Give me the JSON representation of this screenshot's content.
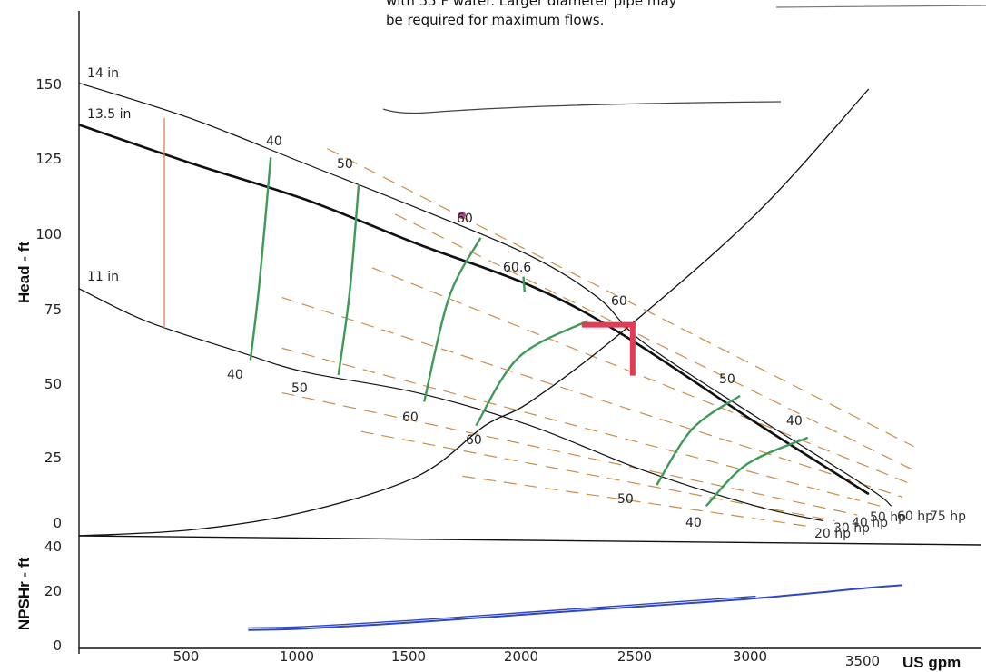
{
  "chart_data": {
    "type": "line",
    "note_line_1": "with 55 F water. Larger diameter pipe may",
    "note_line_2": "be required for maximum flows.",
    "xlabel": "US gpm",
    "ylabel_head": "Head - ft",
    "ylabel_npsh": "NPSHr - ft",
    "xlim": [
      0,
      3700
    ],
    "ylim_head": [
      0,
      160
    ],
    "ylim_npsh": [
      0,
      40
    ],
    "x_ticks": [
      "500",
      "1000",
      "1500",
      "2000",
      "2500",
      "3000",
      "3500"
    ],
    "head_y_ticks": [
      "0",
      "25",
      "50",
      "75",
      "100",
      "125",
      "150"
    ],
    "npsh_y_ticks": [
      "0",
      "20",
      "40"
    ],
    "grid": false,
    "impeller_curves": [
      {
        "label": "14 in",
        "points": [
          [
            0,
            152
          ],
          [
            500,
            140
          ],
          [
            1000,
            125
          ],
          [
            1500,
            110
          ],
          [
            2000,
            94
          ],
          [
            2300,
            80
          ],
          [
            2500,
            65
          ],
          [
            3000,
            40
          ],
          [
            3500,
            16
          ],
          [
            3600,
            10
          ]
        ]
      },
      {
        "label": "13.5 in",
        "points": [
          [
            0,
            138
          ],
          [
            500,
            125
          ],
          [
            1000,
            113
          ],
          [
            1500,
            98
          ],
          [
            2000,
            84
          ],
          [
            2400,
            68
          ],
          [
            3000,
            38
          ],
          [
            3500,
            14
          ]
        ]
      },
      {
        "label": "11 in",
        "points": [
          [
            0,
            83
          ],
          [
            300,
            72
          ],
          [
            700,
            62
          ],
          [
            1000,
            55
          ],
          [
            1500,
            48
          ],
          [
            2000,
            37
          ],
          [
            2500,
            22
          ],
          [
            3000,
            10
          ],
          [
            3300,
            5
          ]
        ]
      }
    ],
    "system_curve": {
      "points": [
        [
          0,
          0
        ],
        [
          500,
          2
        ],
        [
          1000,
          8
        ],
        [
          1500,
          20
        ],
        [
          1800,
          37
        ],
        [
          2000,
          45
        ],
        [
          2400,
          68
        ],
        [
          3000,
          108
        ],
        [
          3500,
          150
        ]
      ]
    },
    "efficiency_curves": [
      {
        "label": "40",
        "points": [
          [
            760,
            59
          ],
          [
            800,
            85
          ],
          [
            850,
            127
          ]
        ]
      },
      {
        "label": "50",
        "points": [
          [
            1150,
            54
          ],
          [
            1200,
            82
          ],
          [
            1240,
            118
          ]
        ]
      },
      {
        "label": "60",
        "points": [
          [
            1530,
            45
          ],
          [
            1640,
            80
          ],
          [
            1780,
            100
          ]
        ]
      },
      {
        "label": "60",
        "points": [
          [
            1760,
            37
          ],
          [
            1950,
            60
          ],
          [
            2250,
            72
          ]
        ]
      },
      {
        "label": "50",
        "points": [
          [
            2560,
            17
          ],
          [
            2720,
            36
          ],
          [
            2930,
            47
          ]
        ]
      },
      {
        "label": "40",
        "points": [
          [
            2780,
            10
          ],
          [
            2960,
            24
          ],
          [
            3230,
            33
          ]
        ]
      }
    ],
    "efficiency_labels": [
      "40",
      "50",
      "60",
      "60.6",
      "60",
      "50",
      "40",
      "40",
      "50",
      "60",
      "60",
      "50",
      "40"
    ],
    "hp_lines": [
      {
        "label": "20 hp"
      },
      {
        "label": "30 hp"
      },
      {
        "label": "40 hp"
      },
      {
        "label": "50 hp"
      },
      {
        "label": "60 hp"
      },
      {
        "label": "75 hp"
      }
    ],
    "operating_point": {
      "x": 2450,
      "y": 69
    },
    "npsh_curve": {
      "points": [
        [
          750,
          7
        ],
        [
          1000,
          7.5
        ],
        [
          1500,
          10
        ],
        [
          2000,
          13
        ],
        [
          2500,
          16
        ],
        [
          3000,
          19
        ],
        [
          3500,
          23
        ],
        [
          3650,
          24
        ]
      ]
    },
    "colors": {
      "impeller": "#111111",
      "efficiency": "#3f9a57",
      "hp": "#c98f48",
      "npsh": "#2f47c0",
      "marker": "#e53a55",
      "red_line": "#e27862"
    }
  }
}
